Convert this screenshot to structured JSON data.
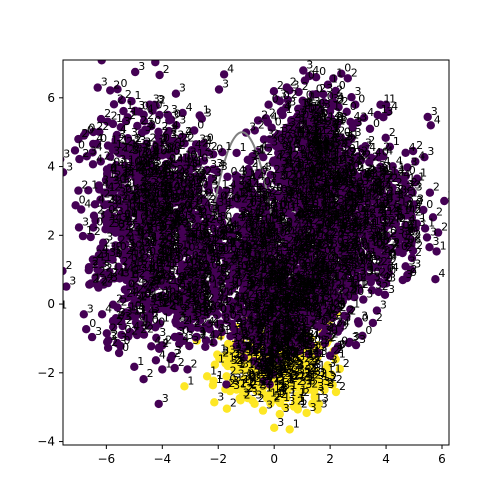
{
  "chart_data": {
    "type": "scatter",
    "title": "",
    "xlabel": "",
    "ylabel": "",
    "xlim": [
      -7.55,
      6.25
    ],
    "ylim": [
      -4.1,
      7.1
    ],
    "xticks": [
      -6,
      -4,
      -2,
      0,
      2,
      4,
      6
    ],
    "yticks": [
      -4,
      -2,
      0,
      2,
      4,
      6
    ],
    "grid": false,
    "legend": "none",
    "colors": {
      "class_0": "#440154",
      "class_1": "#fde725",
      "label_text": "#000000",
      "curve": "#808080"
    },
    "clusters": [
      {
        "class": 0,
        "cx": -4.4,
        "cy": 3.0,
        "sx": 1.1,
        "sy": 1.3,
        "n": 700
      },
      {
        "class": 0,
        "cx": -3.6,
        "cy": 0.3,
        "sx": 1.4,
        "sy": 0.8,
        "n": 350
      },
      {
        "class": 0,
        "cx": -1.8,
        "cy": 1.5,
        "sx": 1.0,
        "sy": 1.0,
        "n": 250
      },
      {
        "class": 0,
        "cx": 1.3,
        "cy": 4.3,
        "sx": 0.8,
        "sy": 0.9,
        "n": 450
      },
      {
        "class": 0,
        "cx": 3.2,
        "cy": 2.6,
        "sx": 1.0,
        "sy": 1.0,
        "n": 450
      },
      {
        "class": 0,
        "cx": 1.3,
        "cy": 1.5,
        "sx": 1.0,
        "sy": 1.1,
        "n": 500
      },
      {
        "class": 0,
        "cx": 0.2,
        "cy": 0.0,
        "sx": 0.9,
        "sy": 0.8,
        "n": 500
      },
      {
        "class": 0,
        "cx": -0.7,
        "cy": 2.6,
        "sx": 0.5,
        "sy": 0.6,
        "n": 120
      },
      {
        "class": 1,
        "cx": 0.0,
        "cy": -1.8,
        "sx": 0.9,
        "sy": 0.55,
        "n": 450
      }
    ],
    "curve": {
      "xmin": -2.2,
      "xmax": -0.1,
      "a": 5.0,
      "h": -1.15,
      "k": 2.6
    },
    "label_values": [
      "0",
      "1",
      "2",
      "3",
      "4",
      "5",
      "6"
    ],
    "edge_points": [
      {
        "x": -5.6,
        "y": 6.25,
        "c": 0,
        "l": "0"
      },
      {
        "x": -5.1,
        "y": 5.9,
        "c": 0,
        "l": "1"
      },
      {
        "x": -4.45,
        "y": 5.8,
        "c": 0,
        "l": "3"
      },
      {
        "x": -3.8,
        "y": 5.5,
        "c": 0,
        "l": "3"
      },
      {
        "x": -3.5,
        "y": 5.2,
        "c": 0,
        "l": "3"
      },
      {
        "x": -4.1,
        "y": 5.5,
        "c": 0,
        "l": "2"
      },
      {
        "x": -7.0,
        "y": 4.8,
        "c": 0,
        "l": "2"
      },
      {
        "x": -6.8,
        "y": 4.9,
        "c": 0,
        "l": "0"
      },
      {
        "x": -6.7,
        "y": 4.3,
        "c": 0,
        "l": "3"
      },
      {
        "x": -6.2,
        "y": 4.15,
        "c": 0,
        "l": "2"
      },
      {
        "x": -7.0,
        "y": 3.3,
        "c": 0,
        "l": "2"
      },
      {
        "x": -6.9,
        "y": 2.75,
        "c": 0,
        "l": "4"
      },
      {
        "x": -2.6,
        "y": 4.4,
        "c": 0,
        "l": "2"
      },
      {
        "x": -2.4,
        "y": 3.9,
        "c": 0,
        "l": "3"
      },
      {
        "x": -2.1,
        "y": 3.9,
        "c": 0,
        "l": "4"
      },
      {
        "x": -1.3,
        "y": 3.7,
        "c": 0,
        "l": "3"
      },
      {
        "x": -1.7,
        "y": 3.3,
        "c": 0,
        "l": "4"
      },
      {
        "x": -0.2,
        "y": 5.8,
        "c": 0,
        "l": "0"
      },
      {
        "x": 0.2,
        "y": 5.9,
        "c": 0,
        "l": "0"
      },
      {
        "x": 0.3,
        "y": 5.5,
        "c": 0,
        "l": "1"
      },
      {
        "x": 1.1,
        "y": 6.5,
        "c": 0,
        "l": "0"
      },
      {
        "x": 1.5,
        "y": 6.6,
        "c": 0,
        "l": "0"
      },
      {
        "x": 2.4,
        "y": 6.7,
        "c": 0,
        "l": "0"
      },
      {
        "x": 2.2,
        "y": 6.2,
        "c": 0,
        "l": "0"
      },
      {
        "x": 2.9,
        "y": 5.8,
        "c": 0,
        "l": "0"
      },
      {
        "x": 3.8,
        "y": 5.8,
        "c": 0,
        "l": "1"
      },
      {
        "x": 4.0,
        "y": 5.8,
        "c": 0,
        "l": "1"
      },
      {
        "x": 3.7,
        "y": 5.5,
        "c": 0,
        "l": "1"
      },
      {
        "x": 5.6,
        "y": 5.2,
        "c": 0,
        "l": "4"
      },
      {
        "x": 4.7,
        "y": 4.4,
        "c": 0,
        "l": "4"
      },
      {
        "x": 3.9,
        "y": 4.3,
        "c": 0,
        "l": "4"
      },
      {
        "x": 3.0,
        "y": 4.3,
        "c": 0,
        "l": "2"
      },
      {
        "x": 4.3,
        "y": 3.7,
        "c": 0,
        "l": "4"
      },
      {
        "x": 4.9,
        "y": 3.3,
        "c": 0,
        "l": "3"
      },
      {
        "x": 5.0,
        "y": 2.9,
        "c": 0,
        "l": "3"
      },
      {
        "x": 4.7,
        "y": 2.3,
        "c": 0,
        "l": "4"
      },
      {
        "x": 4.9,
        "y": 1.7,
        "c": 0,
        "l": "6"
      },
      {
        "x": 4.7,
        "y": 1.1,
        "c": 0,
        "l": "3"
      },
      {
        "x": 4.9,
        "y": 1.0,
        "c": 0,
        "l": "3"
      },
      {
        "x": 4.6,
        "y": 0.7,
        "c": 0,
        "l": "3"
      },
      {
        "x": 3.5,
        "y": 0.4,
        "c": 0,
        "l": "3"
      },
      {
        "x": 4.0,
        "y": 0.6,
        "c": 0,
        "l": "3"
      },
      {
        "x": 3.0,
        "y": -0.5,
        "c": 0,
        "l": "3"
      },
      {
        "x": 2.7,
        "y": -1.1,
        "c": 0,
        "l": "3"
      },
      {
        "x": 2.0,
        "y": -1.5,
        "c": 0,
        "l": "2"
      },
      {
        "x": 1.9,
        "y": -2.3,
        "c": 1,
        "l": "2"
      },
      {
        "x": 1.8,
        "y": -2.5,
        "c": 1,
        "l": "3"
      },
      {
        "x": 1.0,
        "y": -2.5,
        "c": 1,
        "l": "3"
      },
      {
        "x": 0.4,
        "y": -3.0,
        "c": 1,
        "l": "3"
      },
      {
        "x": 0.2,
        "y": -3.2,
        "c": 1,
        "l": "3"
      },
      {
        "x": 0.0,
        "y": -3.6,
        "c": 1,
        "l": "3"
      },
      {
        "x": -0.4,
        "y": -3.1,
        "c": 1,
        "l": "3"
      },
      {
        "x": -0.7,
        "y": -2.9,
        "c": 1,
        "l": "2"
      },
      {
        "x": -1.2,
        "y": -2.8,
        "c": 1,
        "l": "2"
      },
      {
        "x": -1.7,
        "y": -2.1,
        "c": 1,
        "l": "2"
      },
      {
        "x": -2.4,
        "y": -2.1,
        "c": 1,
        "l": "1"
      },
      {
        "x": -3.1,
        "y": -1.9,
        "c": 0,
        "l": "2"
      },
      {
        "x": -3.7,
        "y": -1.6,
        "c": 0,
        "l": "2"
      },
      {
        "x": -4.0,
        "y": -1.9,
        "c": 0,
        "l": "1"
      },
      {
        "x": -4.0,
        "y": -1.2,
        "c": 0,
        "l": "2"
      },
      {
        "x": -4.9,
        "y": -0.9,
        "c": 0,
        "l": "2"
      },
      {
        "x": -5.6,
        "y": -0.1,
        "c": 0,
        "l": "2"
      },
      {
        "x": -6.3,
        "y": 1.3,
        "c": 0,
        "l": "3"
      },
      {
        "x": -6.0,
        "y": 1.5,
        "c": 0,
        "l": "3"
      },
      {
        "x": 1.6,
        "y": -2.9,
        "c": 1,
        "l": "3"
      }
    ]
  }
}
